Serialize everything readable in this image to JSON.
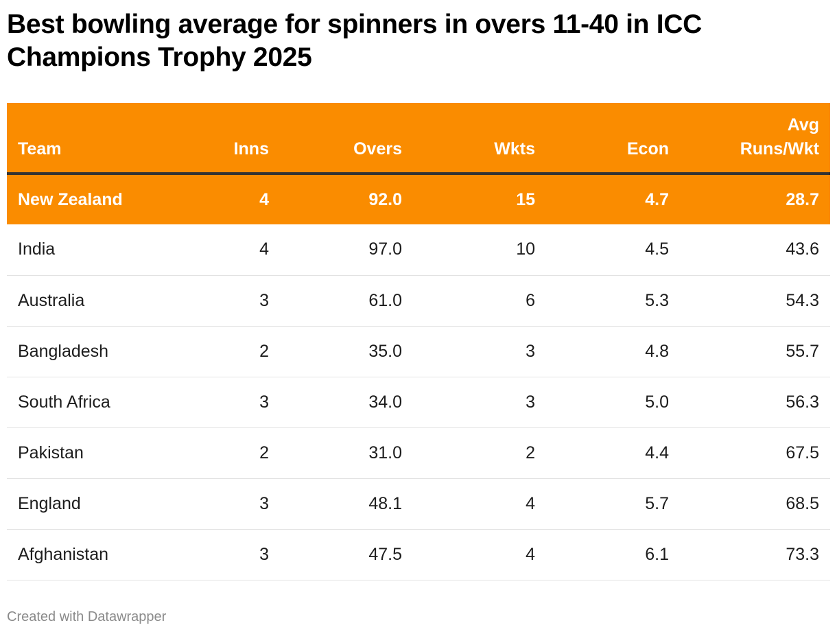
{
  "title": "Best bowling average for spinners in overs 11-40 in ICC Champions Trophy 2025",
  "colors": {
    "accent": "#fa8c00",
    "header_rule": "#333333"
  },
  "table": {
    "columns": [
      "Team",
      "Inns",
      "Overs",
      "Wkts",
      "Econ",
      "Avg Runs/Wkt"
    ],
    "rows": [
      [
        "New Zealand",
        "4",
        "92.0",
        "15",
        "4.7",
        "28.7"
      ],
      [
        "India",
        "4",
        "97.0",
        "10",
        "4.5",
        "43.6"
      ],
      [
        "Australia",
        "3",
        "61.0",
        "6",
        "5.3",
        "54.3"
      ],
      [
        "Bangladesh",
        "2",
        "35.0",
        "3",
        "4.8",
        "55.7"
      ],
      [
        "South Africa",
        "3",
        "34.0",
        "3",
        "5.0",
        "56.3"
      ],
      [
        "Pakistan",
        "2",
        "31.0",
        "2",
        "4.4",
        "67.5"
      ],
      [
        "England",
        "3",
        "48.1",
        "4",
        "5.7",
        "68.5"
      ],
      [
        "Afghanistan",
        "3",
        "47.5",
        "4",
        "6.1",
        "73.3"
      ]
    ],
    "highlighted_row": 0
  },
  "footer": "Created with Datawrapper"
}
